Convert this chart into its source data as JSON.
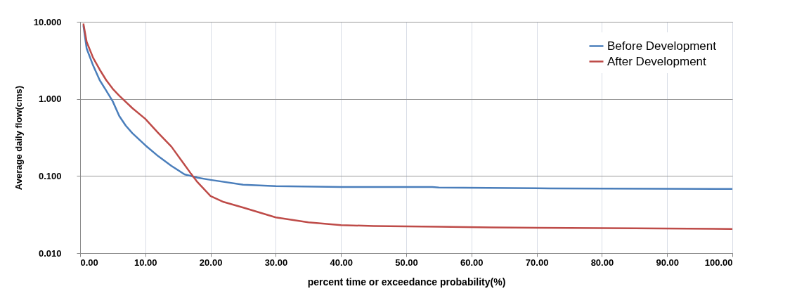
{
  "chart_data": {
    "type": "line",
    "xlabel": "percent time or exceedance probability(%)",
    "ylabel": "Average daily flow(cms)",
    "log": "y",
    "grid": true,
    "legend": "top right",
    "line_style": "solid",
    "marker": "none",
    "xlim": [
      0,
      100
    ],
    "xticks": [
      {
        "value": 0,
        "label": "0.00"
      },
      {
        "value": 10,
        "label": "10.00"
      },
      {
        "value": 20,
        "label": "20.00"
      },
      {
        "value": 30,
        "label": "30.00"
      },
      {
        "value": 40,
        "label": "40.00"
      },
      {
        "value": 50,
        "label": "50.00"
      },
      {
        "value": 60,
        "label": "60.00"
      },
      {
        "value": 70,
        "label": "70.00"
      },
      {
        "value": 80,
        "label": "80.00"
      },
      {
        "value": 90,
        "label": "90.00"
      },
      {
        "value": 100,
        "label": "100.00"
      }
    ],
    "ylim": [
      0.01,
      10
    ],
    "yticks": [
      {
        "value": 0.01,
        "label": "0.010"
      },
      {
        "value": 0.1,
        "label": "0.100"
      },
      {
        "value": 1,
        "label": "1.000"
      },
      {
        "value": 10,
        "label": "10.000"
      }
    ],
    "series": [
      {
        "name": "Before Development",
        "color": "#4a7ebb",
        "x": [
          0.5,
          1,
          2,
          3,
          4,
          5,
          6,
          7,
          8,
          10,
          12,
          14,
          16,
          18,
          20,
          25,
          30,
          40,
          54,
          55,
          72,
          100
        ],
        "values": [
          9,
          4.5,
          2.7,
          1.75,
          1.28,
          0.93,
          0.6,
          0.45,
          0.36,
          0.25,
          0.18,
          0.135,
          0.105,
          0.095,
          0.089,
          0.077,
          0.074,
          0.072,
          0.072,
          0.071,
          0.069,
          0.068
        ]
      },
      {
        "name": "After Development",
        "color": "#be4b48",
        "x": [
          0.5,
          1,
          2,
          3,
          4,
          5,
          6,
          8,
          10,
          12,
          14,
          16,
          17,
          18,
          20,
          22,
          25,
          30,
          35,
          40,
          45,
          55,
          63,
          85,
          100
        ],
        "values": [
          9.5,
          5.5,
          3.4,
          2.4,
          1.75,
          1.35,
          1.1,
          0.76,
          0.55,
          0.36,
          0.24,
          0.14,
          0.107,
          0.083,
          0.055,
          0.046,
          0.039,
          0.029,
          0.025,
          0.023,
          0.0225,
          0.022,
          0.0215,
          0.021,
          0.0205
        ]
      }
    ]
  }
}
